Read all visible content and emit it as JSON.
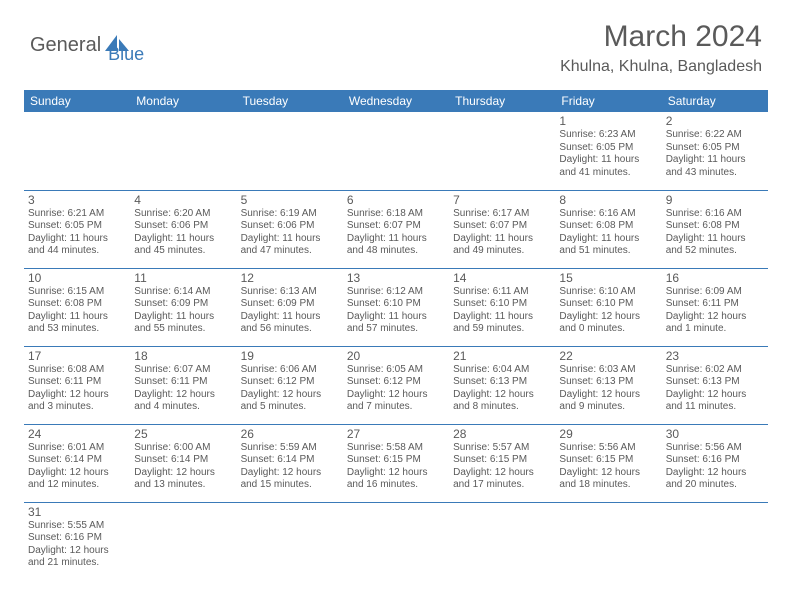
{
  "logo": {
    "part1": "General",
    "part2": "Blue"
  },
  "title": "March 2024",
  "location": "Khulna, Khulna, Bangladesh",
  "colors": {
    "header_bg": "#3a7ab8",
    "header_text": "#ffffff",
    "text": "#5a5a5a",
    "border": "#3a7ab8",
    "background": "#ffffff"
  },
  "daynames": [
    "Sunday",
    "Monday",
    "Tuesday",
    "Wednesday",
    "Thursday",
    "Friday",
    "Saturday"
  ],
  "weeks": [
    [
      null,
      null,
      null,
      null,
      null,
      {
        "n": "1",
        "sr": "6:23 AM",
        "ss": "6:05 PM",
        "dl": "11 hours and 41 minutes."
      },
      {
        "n": "2",
        "sr": "6:22 AM",
        "ss": "6:05 PM",
        "dl": "11 hours and 43 minutes."
      }
    ],
    [
      {
        "n": "3",
        "sr": "6:21 AM",
        "ss": "6:05 PM",
        "dl": "11 hours and 44 minutes."
      },
      {
        "n": "4",
        "sr": "6:20 AM",
        "ss": "6:06 PM",
        "dl": "11 hours and 45 minutes."
      },
      {
        "n": "5",
        "sr": "6:19 AM",
        "ss": "6:06 PM",
        "dl": "11 hours and 47 minutes."
      },
      {
        "n": "6",
        "sr": "6:18 AM",
        "ss": "6:07 PM",
        "dl": "11 hours and 48 minutes."
      },
      {
        "n": "7",
        "sr": "6:17 AM",
        "ss": "6:07 PM",
        "dl": "11 hours and 49 minutes."
      },
      {
        "n": "8",
        "sr": "6:16 AM",
        "ss": "6:08 PM",
        "dl": "11 hours and 51 minutes."
      },
      {
        "n": "9",
        "sr": "6:16 AM",
        "ss": "6:08 PM",
        "dl": "11 hours and 52 minutes."
      }
    ],
    [
      {
        "n": "10",
        "sr": "6:15 AM",
        "ss": "6:08 PM",
        "dl": "11 hours and 53 minutes."
      },
      {
        "n": "11",
        "sr": "6:14 AM",
        "ss": "6:09 PM",
        "dl": "11 hours and 55 minutes."
      },
      {
        "n": "12",
        "sr": "6:13 AM",
        "ss": "6:09 PM",
        "dl": "11 hours and 56 minutes."
      },
      {
        "n": "13",
        "sr": "6:12 AM",
        "ss": "6:10 PM",
        "dl": "11 hours and 57 minutes."
      },
      {
        "n": "14",
        "sr": "6:11 AM",
        "ss": "6:10 PM",
        "dl": "11 hours and 59 minutes."
      },
      {
        "n": "15",
        "sr": "6:10 AM",
        "ss": "6:10 PM",
        "dl": "12 hours and 0 minutes."
      },
      {
        "n": "16",
        "sr": "6:09 AM",
        "ss": "6:11 PM",
        "dl": "12 hours and 1 minute."
      }
    ],
    [
      {
        "n": "17",
        "sr": "6:08 AM",
        "ss": "6:11 PM",
        "dl": "12 hours and 3 minutes."
      },
      {
        "n": "18",
        "sr": "6:07 AM",
        "ss": "6:11 PM",
        "dl": "12 hours and 4 minutes."
      },
      {
        "n": "19",
        "sr": "6:06 AM",
        "ss": "6:12 PM",
        "dl": "12 hours and 5 minutes."
      },
      {
        "n": "20",
        "sr": "6:05 AM",
        "ss": "6:12 PM",
        "dl": "12 hours and 7 minutes."
      },
      {
        "n": "21",
        "sr": "6:04 AM",
        "ss": "6:13 PM",
        "dl": "12 hours and 8 minutes."
      },
      {
        "n": "22",
        "sr": "6:03 AM",
        "ss": "6:13 PM",
        "dl": "12 hours and 9 minutes."
      },
      {
        "n": "23",
        "sr": "6:02 AM",
        "ss": "6:13 PM",
        "dl": "12 hours and 11 minutes."
      }
    ],
    [
      {
        "n": "24",
        "sr": "6:01 AM",
        "ss": "6:14 PM",
        "dl": "12 hours and 12 minutes."
      },
      {
        "n": "25",
        "sr": "6:00 AM",
        "ss": "6:14 PM",
        "dl": "12 hours and 13 minutes."
      },
      {
        "n": "26",
        "sr": "5:59 AM",
        "ss": "6:14 PM",
        "dl": "12 hours and 15 minutes."
      },
      {
        "n": "27",
        "sr": "5:58 AM",
        "ss": "6:15 PM",
        "dl": "12 hours and 16 minutes."
      },
      {
        "n": "28",
        "sr": "5:57 AM",
        "ss": "6:15 PM",
        "dl": "12 hours and 17 minutes."
      },
      {
        "n": "29",
        "sr": "5:56 AM",
        "ss": "6:15 PM",
        "dl": "12 hours and 18 minutes."
      },
      {
        "n": "30",
        "sr": "5:56 AM",
        "ss": "6:16 PM",
        "dl": "12 hours and 20 minutes."
      }
    ],
    [
      {
        "n": "31",
        "sr": "5:55 AM",
        "ss": "6:16 PM",
        "dl": "12 hours and 21 minutes."
      },
      null,
      null,
      null,
      null,
      null,
      null
    ]
  ],
  "labels": {
    "sunrise": "Sunrise: ",
    "sunset": "Sunset: ",
    "daylight": "Daylight: "
  }
}
